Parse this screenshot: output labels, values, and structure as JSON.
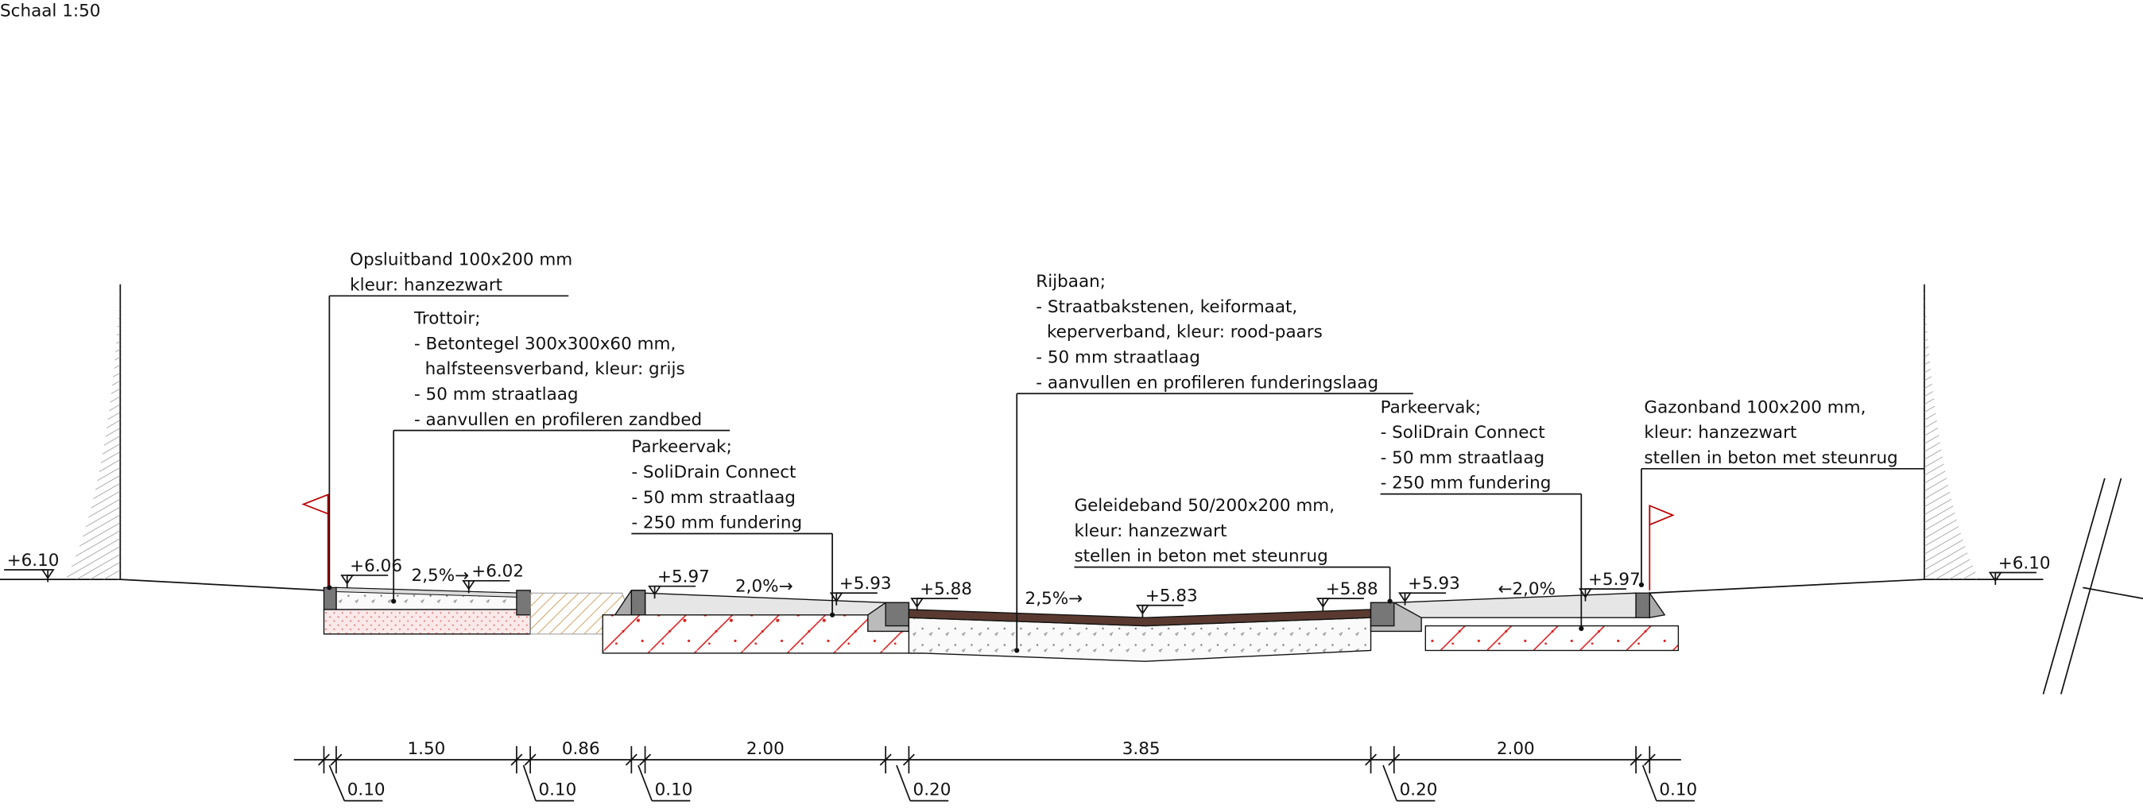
{
  "scale_label": "Schaal 1:50",
  "annotations": [
    {
      "lines": [
        "Opsluitband 100x200 mm",
        "kleur: hanzezwart"
      ]
    },
    {
      "lines": [
        "Trottoir;",
        "- Betontegel 300x300x60 mm,",
        "  halfsteensverband, kleur: grijs",
        "- 50 mm straatlaag",
        "- aanvullen en profileren zandbed"
      ]
    },
    {
      "lines": [
        "Parkeervak;",
        "- SoliDrain Connect",
        "- 50 mm straatlaag",
        "- 250 mm fundering"
      ]
    },
    {
      "lines": [
        "Rijbaan;",
        "- Straatbakstenen, keiformaat,",
        "  keperverband, kleur: rood-paars",
        "- 50 mm straatlaag",
        "- aanvullen en profileren funderingslaag"
      ]
    },
    {
      "lines": [
        "Parkeervak;",
        "- SoliDrain Connect",
        "- 50 mm straatlaag",
        "- 250 mm fundering"
      ]
    },
    {
      "lines": [
        "Geleideband 50/200x200 mm,",
        "kleur: hanzezwart",
        "stellen in beton met steunrug"
      ]
    },
    {
      "lines": [
        "Gazonband 100x200 mm,",
        "kleur: hanzezwart",
        "stellen in beton met steunrug"
      ]
    }
  ],
  "levels": [
    "+6.10",
    "+6.06",
    "+6.02",
    "+5.97",
    "+5.93",
    "+5.88",
    "+5.83",
    "+5.88",
    "+5.93",
    "+5.97",
    "+6.10"
  ],
  "slopes": [
    "2,5%→",
    "2,0%→",
    "2,5%→",
    "←2,0%"
  ],
  "dimensions": {
    "widths": [
      "1.50",
      "0.86",
      "2.00",
      "3.85",
      "2.00"
    ],
    "offsets": [
      "0.10",
      "0.10",
      "0.10",
      "0.20",
      "0.20",
      "0.10"
    ]
  }
}
